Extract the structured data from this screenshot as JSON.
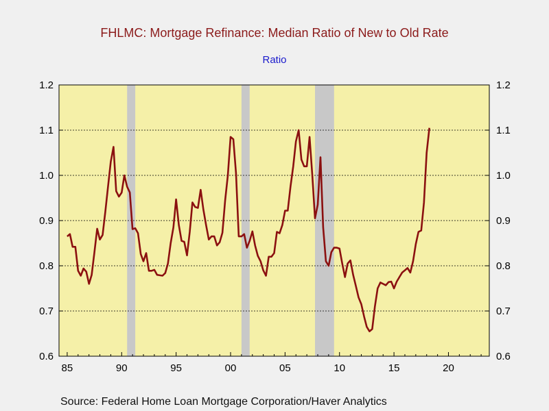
{
  "chart_data": {
    "type": "line",
    "title": "FHLMC: Mortgage Refinance: Median Ratio of New to Old Rate",
    "subtitle": "Ratio",
    "source": "Source:  Federal Home Loan Mortgage Corporation/Haver Analytics",
    "xlim": [
      1984.25,
      2023.75
    ],
    "ylim": [
      0.6,
      1.2
    ],
    "yticks": [
      0.6,
      0.7,
      0.8,
      0.9,
      1.0,
      1.1,
      1.2
    ],
    "ytick_labels": [
      "0.6",
      "0.7",
      "0.8",
      "0.9",
      "1.0",
      "1.1",
      "1.2"
    ],
    "xticks": [
      1985,
      1990,
      1995,
      2000,
      2005,
      2010,
      2015,
      2020
    ],
    "xtick_labels": [
      "85",
      "90",
      "95",
      "00",
      "05",
      "10",
      "15",
      "20"
    ],
    "grid": "horizontal dotted",
    "colors": {
      "plot_background": "#f5f0a8",
      "line": "#8b1010",
      "recession": "#c8c8c8",
      "title": "#8b1a1a",
      "subtitle": "#1a1acc"
    },
    "recessions": [
      [
        1990.5,
        1991.25
      ],
      [
        2001.0,
        2001.75
      ],
      [
        2007.75,
        2009.5
      ]
    ],
    "series": [
      {
        "x": [
          1985.0,
          1985.25,
          1985.5,
          1985.75,
          1986.0,
          1986.25,
          1986.5,
          1986.75,
          1987.0,
          1987.25,
          1987.5,
          1987.75,
          1988.0,
          1988.25,
          1988.5,
          1988.75,
          1989.0,
          1989.25,
          1989.5,
          1989.75,
          1990.0,
          1990.25,
          1990.5,
          1990.75,
          1991.0,
          1991.25,
          1991.5,
          1991.75,
          1992.0,
          1992.25,
          1992.5,
          1992.75,
          1993.0,
          1993.25,
          1993.5,
          1993.75,
          1994.0,
          1994.25,
          1994.5,
          1994.75,
          1995.0,
          1995.25,
          1995.5,
          1995.75,
          1996.0,
          1996.25,
          1996.5,
          1996.75,
          1997.0,
          1997.25,
          1997.5,
          1997.75,
          1998.0,
          1998.25,
          1998.5,
          1998.75,
          1999.0,
          1999.25,
          1999.5,
          1999.75,
          2000.0,
          2000.25,
          2000.5,
          2000.75,
          2001.0,
          2001.25,
          2001.5,
          2001.75,
          2002.0,
          2002.25,
          2002.5,
          2002.75,
          2003.0,
          2003.25,
          2003.5,
          2003.75,
          2004.0,
          2004.25,
          2004.5,
          2004.75,
          2005.0,
          2005.25,
          2005.5,
          2005.75,
          2006.0,
          2006.25,
          2006.5,
          2006.75,
          2007.0,
          2007.25,
          2007.5,
          2007.75,
          2008.0,
          2008.25,
          2008.5,
          2008.75,
          2009.0,
          2009.25,
          2009.5,
          2009.75,
          2010.0,
          2010.25,
          2010.5,
          2010.75,
          2011.0,
          2011.25,
          2011.5,
          2011.75,
          2012.0,
          2012.25,
          2012.5,
          2012.75,
          2013.0,
          2013.25,
          2013.5,
          2013.75,
          2014.0,
          2014.25,
          2014.5,
          2014.75,
          2015.0,
          2015.25,
          2015.5,
          2015.75,
          2016.0,
          2016.25,
          2016.5,
          2016.75,
          2017.0,
          2017.25,
          2017.5,
          2017.75,
          2018.0,
          2018.25
        ],
        "values": [
          0.865,
          0.87,
          0.842,
          0.842,
          0.789,
          0.778,
          0.794,
          0.787,
          0.76,
          0.78,
          0.83,
          0.882,
          0.858,
          0.868,
          0.92,
          0.975,
          1.03,
          1.063,
          0.965,
          0.953,
          0.962,
          1.0,
          0.975,
          0.962,
          0.881,
          0.883,
          0.872,
          0.826,
          0.81,
          0.828,
          0.789,
          0.789,
          0.791,
          0.78,
          0.779,
          0.778,
          0.784,
          0.805,
          0.85,
          0.885,
          0.947,
          0.89,
          0.855,
          0.853,
          0.823,
          0.875,
          0.94,
          0.93,
          0.928,
          0.968,
          0.925,
          0.89,
          0.858,
          0.865,
          0.865,
          0.845,
          0.852,
          0.873,
          0.945,
          1.0,
          1.085,
          1.08,
          1.005,
          0.865,
          0.865,
          0.87,
          0.84,
          0.855,
          0.876,
          0.845,
          0.822,
          0.81,
          0.79,
          0.778,
          0.82,
          0.82,
          0.828,
          0.875,
          0.872,
          0.89,
          0.922,
          0.922,
          0.975,
          1.02,
          1.075,
          1.1,
          1.035,
          1.02,
          1.02,
          1.085,
          1.0,
          0.905,
          0.935,
          1.04,
          0.885,
          0.81,
          0.8,
          0.83,
          0.84,
          0.84,
          0.838,
          0.805,
          0.775,
          0.805,
          0.812,
          0.78,
          0.755,
          0.73,
          0.715,
          0.688,
          0.665,
          0.655,
          0.66,
          0.71,
          0.75,
          0.763,
          0.76,
          0.757,
          0.764,
          0.765,
          0.75,
          0.765,
          0.775,
          0.785,
          0.79,
          0.795,
          0.785,
          0.81,
          0.848,
          0.875,
          0.878,
          0.94,
          1.05,
          1.105
        ]
      }
    ]
  }
}
